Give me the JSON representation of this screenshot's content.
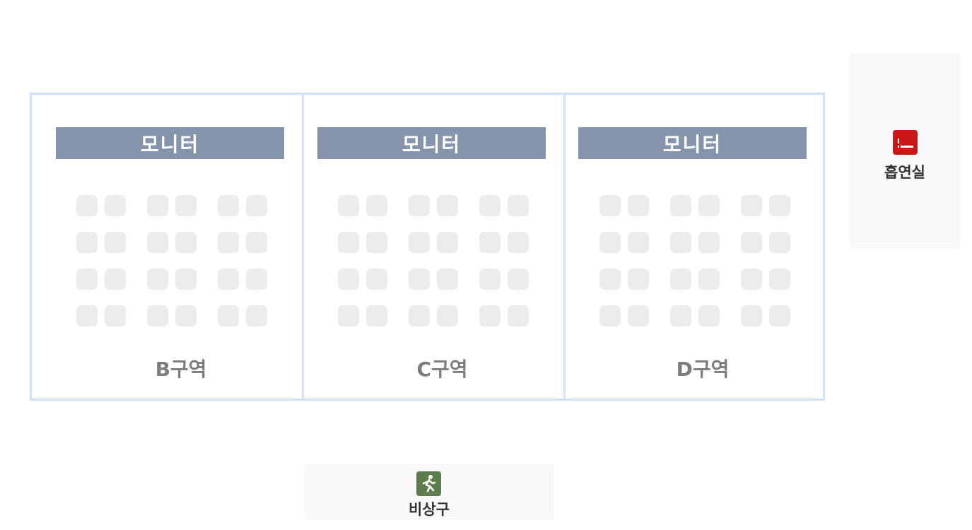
{
  "zones": [
    {
      "monitor_label": "모니터",
      "zone_label": "B구역"
    },
    {
      "monitor_label": "모니터",
      "zone_label": "C구역"
    },
    {
      "monitor_label": "모니터",
      "zone_label": "D구역"
    }
  ],
  "smoking_room": {
    "label": "흡연실",
    "icon": "smoking-icon",
    "color": "#c91616"
  },
  "emergency_exit": {
    "label": "비상구",
    "icon": "running-person-icon",
    "color": "#5e7d4c"
  },
  "seats_per_zone": 24,
  "colors": {
    "zone_border": "#cfe0fb",
    "monitor_bg": "#8394ab",
    "seat": "#ececec",
    "zone_label": "#7d7d7d"
  }
}
